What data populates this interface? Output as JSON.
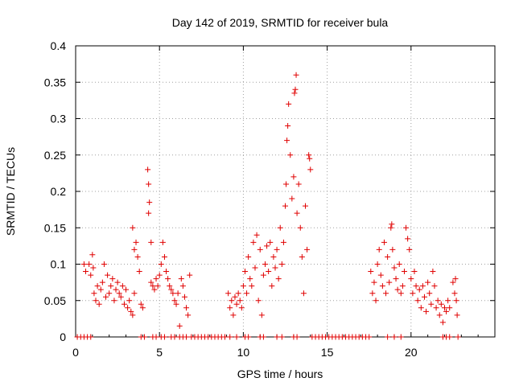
{
  "chart_data": {
    "type": "scatter",
    "title": "Day 142 of 2019, SRMTID for receiver bula",
    "xlabel": "GPS time / hours",
    "ylabel": "SRMTID / TECUs",
    "xlim": [
      0,
      25
    ],
    "ylim": [
      0,
      0.4
    ],
    "xticks": [
      0,
      5,
      10,
      15,
      20
    ],
    "xtick_labels": [
      "0",
      "5",
      "10",
      "15",
      "20"
    ],
    "yticks": [
      0,
      0.05,
      0.1,
      0.15,
      0.2,
      0.25,
      0.3,
      0.35,
      0.4
    ],
    "ytick_labels": [
      "0",
      "0.05",
      "0.1",
      "0.15",
      "0.2",
      "0.25",
      "0.3",
      "0.35",
      "0.4"
    ],
    "grid": true,
    "marker": "+",
    "marker_color": "#e00000",
    "series": [
      {
        "name": "SRMTID",
        "points": [
          [
            0.1,
            0
          ],
          [
            0.3,
            0
          ],
          [
            0.5,
            0
          ],
          [
            0.7,
            0
          ],
          [
            0.9,
            0
          ],
          [
            0.5,
            0.1
          ],
          [
            0.6,
            0.09
          ],
          [
            0.8,
            0.1
          ],
          [
            0.9,
            0.085
          ],
          [
            1.0,
            0.113
          ],
          [
            1.05,
            0.095
          ],
          [
            1.1,
            0.06
          ],
          [
            1.2,
            0.05
          ],
          [
            1.3,
            0.07
          ],
          [
            1.4,
            0.045
          ],
          [
            1.5,
            0.065
          ],
          [
            1.6,
            0.075
          ],
          [
            1.7,
            0.1
          ],
          [
            1.8,
            0.055
          ],
          [
            1.9,
            0.085
          ],
          [
            2.0,
            0.06
          ],
          [
            2.1,
            0.07
          ],
          [
            2.2,
            0.08
          ],
          [
            2.3,
            0.05
          ],
          [
            2.4,
            0.065
          ],
          [
            2.5,
            0.075
          ],
          [
            2.6,
            0.06
          ],
          [
            2.7,
            0.055
          ],
          [
            2.8,
            0.07
          ],
          [
            2.9,
            0.045
          ],
          [
            3.0,
            0.065
          ],
          [
            3.1,
            0.04
          ],
          [
            3.2,
            0.05
          ],
          [
            3.3,
            0.035
          ],
          [
            3.4,
            0.03
          ],
          [
            3.5,
            0.06
          ],
          [
            3.4,
            0.15
          ],
          [
            3.5,
            0.12
          ],
          [
            3.6,
            0.13
          ],
          [
            3.7,
            0.11
          ],
          [
            3.8,
            0.09
          ],
          [
            3.9,
            0.045
          ],
          [
            4.0,
            0.04
          ],
          [
            3.9,
            0
          ],
          [
            4.1,
            0
          ],
          [
            4.3,
            0.23
          ],
          [
            4.35,
            0.21
          ],
          [
            4.4,
            0.185
          ],
          [
            4.35,
            0.17
          ],
          [
            4.5,
            0.13
          ],
          [
            4.5,
            0.075
          ],
          [
            4.6,
            0.07
          ],
          [
            4.7,
            0.065
          ],
          [
            4.8,
            0.08
          ],
          [
            4.9,
            0.07
          ],
          [
            4.6,
            0
          ],
          [
            4.8,
            0
          ],
          [
            5.1,
            0
          ],
          [
            5.3,
            0
          ],
          [
            5.0,
            0.085
          ],
          [
            5.1,
            0.1
          ],
          [
            5.2,
            0.13
          ],
          [
            5.3,
            0.11
          ],
          [
            5.4,
            0.09
          ],
          [
            5.5,
            0.08
          ],
          [
            5.6,
            0.07
          ],
          [
            5.7,
            0.065
          ],
          [
            5.8,
            0.06
          ],
          [
            5.9,
            0.05
          ],
          [
            6.0,
            0.045
          ],
          [
            6.1,
            0.06
          ],
          [
            6.2,
            0.015
          ],
          [
            6.3,
            0.08
          ],
          [
            6.4,
            0.07
          ],
          [
            6.5,
            0.055
          ],
          [
            6.6,
            0.04
          ],
          [
            6.7,
            0.03
          ],
          [
            6.8,
            0.085
          ],
          [
            5.7,
            0
          ],
          [
            5.9,
            0
          ],
          [
            6.2,
            0
          ],
          [
            6.4,
            0
          ],
          [
            6.6,
            0
          ],
          [
            6.9,
            0
          ],
          [
            7.1,
            0
          ],
          [
            7.3,
            0
          ],
          [
            7.5,
            0
          ],
          [
            7.7,
            0
          ],
          [
            7.9,
            0
          ],
          [
            8.1,
            0
          ],
          [
            8.3,
            0
          ],
          [
            8.5,
            0
          ],
          [
            8.7,
            0
          ],
          [
            8.9,
            0
          ],
          [
            9.1,
            0.06
          ],
          [
            9.2,
            0.04
          ],
          [
            9.3,
            0.05
          ],
          [
            9.4,
            0.03
          ],
          [
            9.5,
            0.055
          ],
          [
            9.6,
            0.045
          ],
          [
            9.7,
            0.06
          ],
          [
            9.8,
            0.05
          ],
          [
            9.9,
            0.04
          ],
          [
            10.0,
            0.07
          ],
          [
            10.1,
            0.09
          ],
          [
            10.2,
            0.06
          ],
          [
            10.3,
            0.11
          ],
          [
            10.4,
            0.08
          ],
          [
            10.5,
            0.07
          ],
          [
            10.6,
            0.13
          ],
          [
            10.7,
            0.095
          ],
          [
            10.8,
            0.14
          ],
          [
            10.9,
            0.05
          ],
          [
            11.0,
            0.12
          ],
          [
            11.1,
            0.03
          ],
          [
            11.2,
            0.085
          ],
          [
            11.3,
            0.1
          ],
          [
            11.4,
            0.125
          ],
          [
            11.5,
            0.09
          ],
          [
            11.6,
            0.13
          ],
          [
            11.7,
            0.07
          ],
          [
            11.8,
            0.11
          ],
          [
            11.9,
            0.095
          ],
          [
            12.0,
            0.12
          ],
          [
            12.1,
            0.08
          ],
          [
            12.2,
            0.15
          ],
          [
            12.3,
            0.1
          ],
          [
            12.4,
            0.13
          ],
          [
            12.5,
            0.18
          ],
          [
            12.55,
            0.21
          ],
          [
            12.6,
            0.27
          ],
          [
            12.65,
            0.29
          ],
          [
            12.7,
            0.32
          ],
          [
            12.8,
            0.25
          ],
          [
            12.9,
            0.19
          ],
          [
            13.0,
            0.22
          ],
          [
            13.05,
            0.335
          ],
          [
            13.1,
            0.34
          ],
          [
            13.15,
            0.36
          ],
          [
            13.2,
            0.17
          ],
          [
            13.3,
            0.21
          ],
          [
            13.4,
            0.15
          ],
          [
            13.5,
            0.11
          ],
          [
            13.6,
            0.06
          ],
          [
            13.7,
            0.18
          ],
          [
            13.8,
            0.12
          ],
          [
            13.9,
            0.25
          ],
          [
            13.95,
            0.245
          ],
          [
            14.0,
            0.23
          ],
          [
            9.2,
            0
          ],
          [
            9.6,
            0
          ],
          [
            10.1,
            0
          ],
          [
            10.3,
            0
          ],
          [
            11.0,
            0
          ],
          [
            11.2,
            0
          ],
          [
            12.0,
            0
          ],
          [
            12.3,
            0
          ],
          [
            13.0,
            0
          ],
          [
            13.2,
            0
          ],
          [
            14.1,
            0
          ],
          [
            14.3,
            0
          ],
          [
            14.5,
            0
          ],
          [
            14.7,
            0
          ],
          [
            14.9,
            0
          ],
          [
            15.1,
            0
          ],
          [
            15.3,
            0
          ],
          [
            15.5,
            0
          ],
          [
            15.7,
            0
          ],
          [
            15.9,
            0
          ],
          [
            16.1,
            0
          ],
          [
            16.3,
            0
          ],
          [
            16.5,
            0
          ],
          [
            16.7,
            0
          ],
          [
            16.9,
            0
          ],
          [
            17.1,
            0
          ],
          [
            17.3,
            0
          ],
          [
            17.5,
            0
          ],
          [
            17.6,
            0.09
          ],
          [
            17.7,
            0.06
          ],
          [
            17.8,
            0.075
          ],
          [
            17.9,
            0.05
          ],
          [
            18.0,
            0.1
          ],
          [
            18.1,
            0.12
          ],
          [
            18.2,
            0.085
          ],
          [
            18.3,
            0.07
          ],
          [
            18.4,
            0.13
          ],
          [
            18.5,
            0.06
          ],
          [
            18.6,
            0.11
          ],
          [
            18.7,
            0.075
          ],
          [
            18.8,
            0.15
          ],
          [
            18.85,
            0.155
          ],
          [
            18.9,
            0.12
          ],
          [
            19.0,
            0.095
          ],
          [
            19.1,
            0.08
          ],
          [
            19.2,
            0.065
          ],
          [
            19.3,
            0.1
          ],
          [
            19.4,
            0.06
          ],
          [
            19.5,
            0.07
          ],
          [
            19.6,
            0.09
          ],
          [
            19.7,
            0.15
          ],
          [
            19.8,
            0.135
          ],
          [
            19.9,
            0.12
          ],
          [
            20.0,
            0.08
          ],
          [
            20.1,
            0.06
          ],
          [
            20.2,
            0.09
          ],
          [
            20.3,
            0.07
          ],
          [
            20.4,
            0.05
          ],
          [
            20.5,
            0.065
          ],
          [
            20.6,
            0.04
          ],
          [
            20.7,
            0.07
          ],
          [
            20.8,
            0.055
          ],
          [
            20.9,
            0.035
          ],
          [
            21.0,
            0.075
          ],
          [
            21.1,
            0.06
          ],
          [
            21.2,
            0.045
          ],
          [
            21.3,
            0.09
          ],
          [
            21.4,
            0.07
          ],
          [
            21.5,
            0.04
          ],
          [
            21.6,
            0.05
          ],
          [
            21.7,
            0.03
          ],
          [
            21.8,
            0.045
          ],
          [
            21.9,
            0.02
          ],
          [
            22.0,
            0.04
          ],
          [
            22.1,
            0.035
          ],
          [
            22.2,
            0.05
          ],
          [
            22.3,
            0.04
          ],
          [
            22.5,
            0.075
          ],
          [
            22.6,
            0.06
          ],
          [
            22.65,
            0.08
          ],
          [
            22.7,
            0.05
          ],
          [
            22.75,
            0.03
          ],
          [
            18.6,
            0
          ],
          [
            19.0,
            0
          ],
          [
            19.4,
            0
          ],
          [
            21.9,
            0
          ],
          [
            22.1,
            0
          ],
          [
            22.3,
            0
          ],
          [
            22.8,
            0
          ]
        ]
      }
    ]
  }
}
